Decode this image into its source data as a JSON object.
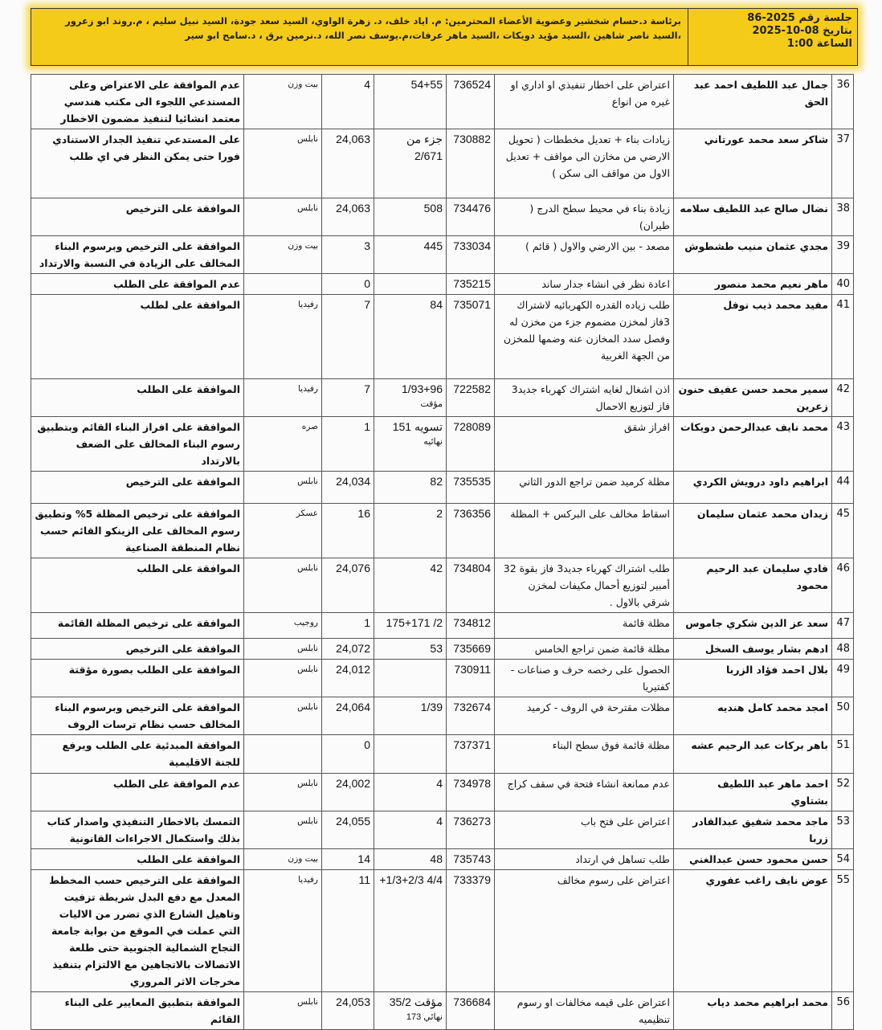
{
  "header": {
    "meeting_no": "جلسة رقم 2025-86",
    "date": "بتاريخ 08-10-2025",
    "time": "الساعة 1:00",
    "members": "برئاسة د.حسام شخشير وعضوية الأعضاء المحترمين: م. اياد خلف، د. زهرة الواوي، السيد سعد جودة، السيد نبيل سليم ، م.روند ابو زعرور ،السيد ناصر شاهين ،السيد مؤيد دويكات ،السيد ماهر عرفات،م.يوسف نصر الله، د.نرمين برق ، د.سامح ابو سير",
    "highlight_color": "#f5cb1a"
  },
  "rows": [
    {
      "num": "36",
      "name": "جمال عبد اللطيف احمد عبد الحق",
      "desc": "اعتراض على اخطار تنفيذي او اداري او غيره من انواع",
      "req": "736524",
      "parcel": "54+55",
      "parcel_note": "",
      "basin": "4",
      "area": "بيت وزن",
      "decision": "عدم الموافقة على الاعتراض وعلى المستدعي اللجوء الى مكتب هندسي معتمد انشائيا لتنفيذ مضمون الاخطار"
    },
    {
      "num": "37",
      "name": "شاكر سعد محمد عورتاني",
      "desc": "زيادات بناء + تعديل مخططات ( تحويل الارضي من مخازن الى مواقف + تعديل الاول من مواقف الى سكن )",
      "req": "730882",
      "parcel": "جزء من 2/671",
      "parcel_note": "",
      "basin": "24,063",
      "area": "نابلس",
      "decision": "على المستدعي تنفيذ الجدار الاستنادي فورا حتى يمكن النظر في اي طلب"
    },
    {
      "num": "38",
      "name": "نضال صالح عبد اللطيف سلامه",
      "desc": "زيادة بناء في محيط سطح الدرج ( طيران)",
      "req": "734476",
      "parcel": "508",
      "parcel_note": "",
      "basin": "24,063",
      "area": "نابلس",
      "decision": "الموافقة على الترخيص"
    },
    {
      "num": "39",
      "name": "مجدي عثمان منيب طشطوش",
      "desc": "مصعد - بين الارضي والاول ( قائم )",
      "req": "733034",
      "parcel": "445",
      "parcel_note": "",
      "basin": "3",
      "area": "بيت وزن",
      "decision": "الموافقة على الترخيص وبرسوم البناء المخالف على الزيادة في النسبة والارتداد"
    },
    {
      "num": "40",
      "name": "ماهر نعيم محمد منصور",
      "desc": "اعادة نظر في انشاء جدار ساند",
      "req": "735215",
      "parcel": "",
      "parcel_note": "",
      "basin": "0",
      "area": "",
      "decision": "عدم الموافقة على الطلب"
    },
    {
      "num": "41",
      "name": "مفيد محمد ذيب نوفل",
      "desc": "طلب زياده القدره الكهربائيه لاشتراك 3فاز لمخزن مضموم جزء من مخزن له وفصل سدد المخازن عنه وضمها للمخزن من الجهة الغربية",
      "req": "735071",
      "parcel": "84",
      "parcel_note": "",
      "basin": "7",
      "area": "رفيديا",
      "decision": "الموافقة على لطلب"
    },
    {
      "num": "42",
      "name": "سمير محمد حسن عفيف حنون زعرين",
      "desc": "اذن اشغال لغايه اشتراك كهرباء جديد3 فاز لتوزيع الاحمال",
      "req": "722582",
      "parcel": "1/93+96",
      "parcel_note": "مؤقت",
      "basin": "7",
      "area": "رفيديا",
      "decision": "الموافقة على الطلب"
    },
    {
      "num": "43",
      "name": "محمد نايف عبدالرحمن دويكات",
      "desc": "افراز شقق",
      "req": "728089",
      "parcel": "151 تسويه",
      "parcel_note": "نهائيه",
      "basin": "1",
      "area": "صره",
      "decision": "الموافقة على افراز البناء القائم وبتطبيق رسوم البناء المخالف على الضعف بالارتداد"
    },
    {
      "num": "44",
      "name": "ابراهيم داود درويش الكردي",
      "desc": "مظلة كرميد ضمن تراجع الدور الثاني",
      "req": "735535",
      "parcel": "82",
      "parcel_note": "",
      "basin": "24,034",
      "area": "نابلس",
      "decision": "الموافقة على الترخيص"
    },
    {
      "num": "45",
      "name": "زيدان محمد عثمان سليمان",
      "desc": "اسقاط مخالف على البركس + المظلة",
      "req": "736356",
      "parcel": "2",
      "parcel_note": "",
      "basin": "16",
      "area": "عسكر",
      "decision": "الموافقة على ترخيص المظلة 5% وتطبيق رسوم المخالف على الزينكو القائم حسب نظام المنطقة الصناعية"
    },
    {
      "num": "46",
      "name": "فادي سليمان عبد الرحيم محمود",
      "desc": "طلب اشتراك كهرباء جديد3 فاز بقوة 32 أمبير لتوزيع أحمال مكيفات لمخزن شرقي بالاول .",
      "req": "734804",
      "parcel": "42",
      "parcel_note": "",
      "basin": "24,076",
      "area": "نابلس",
      "decision": "الموافقة على الطلب"
    },
    {
      "num": "47",
      "name": "سعد عز الدين شكري جاموس",
      "desc": "مظلة قائمة",
      "req": "734812",
      "parcel": "175+171 /2",
      "parcel_note": "",
      "basin": "1",
      "area": "روجيب",
      "decision": "الموافقة على ترخيص المظلة القائمة"
    },
    {
      "num": "48",
      "name": "ادهم بشار يوسف السخل",
      "desc": "مظلة قائمة ضمن تراجع الخامس",
      "req": "735669",
      "parcel": "53",
      "parcel_note": "",
      "basin": "24,072",
      "area": "نابلس",
      "decision": "الموافقة على الترخيص"
    },
    {
      "num": "49",
      "name": "بلال احمد فؤاد الزربا",
      "desc": "الحصول على رخصه حرف و صناعات - كفتيريا",
      "req": "730911",
      "parcel": "",
      "parcel_note": "",
      "basin": "24,012",
      "area": "نابلس",
      "decision": "الموافقة على الطلب بصورة مؤقتة"
    },
    {
      "num": "50",
      "name": "امجد محمد كامل هنديه",
      "desc": "مظلات مقترحة في الروف - كرميد",
      "req": "732674",
      "parcel": "1/39",
      "parcel_note": "",
      "basin": "24,064",
      "area": "نابلس",
      "decision": "الموافقة على الترخيص وبرسوم البناء المخالف حسب نظام ترسات الروف"
    },
    {
      "num": "51",
      "name": "باهر بركات عبد الرحيم عشه",
      "desc": "مظلة قائمة فوق سطح البناء",
      "req": "737371",
      "parcel": "",
      "parcel_note": "",
      "basin": "0",
      "area": "",
      "decision": "الموافقة المبدئية على الطلب ويرفع للجنة الاقليمية"
    },
    {
      "num": "52",
      "name": "احمد ماهر عبد اللطيف بشتاوي",
      "desc": "عدم ممانعة انشاء فتحة في سقف كراج",
      "req": "734978",
      "parcel": "4",
      "parcel_note": "",
      "basin": "24,002",
      "area": "نابلس",
      "decision": "عدم الموافقة على الطلب"
    },
    {
      "num": "53",
      "name": "ماجد محمد شفيق عبدالقادر زربا",
      "desc": "اعتراض على فتح باب",
      "req": "736273",
      "parcel": "4",
      "parcel_note": "",
      "basin": "24,055",
      "area": "نابلس",
      "decision": "التمسك بالاخطار التنفيذي واصدار كتاب بذلك واستكمال الاجراءات القانونية"
    },
    {
      "num": "54",
      "name": "حسن محمود حسن عبدالغني",
      "desc": "طلب تساهل في ارتداد",
      "req": "735743",
      "parcel": "48",
      "parcel_note": "",
      "basin": "14",
      "area": "بيت وزن",
      "decision": "الموافقة على الطلب"
    },
    {
      "num": "55",
      "name": "عوض نايف راغب عفوري",
      "desc": "اعتراض على رسوم مخالف",
      "req": "733379",
      "parcel": "+1/3+2/3 4/4",
      "parcel_note": "",
      "basin": "11",
      "area": "رفيديا",
      "decision": "الموافقة على الترخيص حسب المخطط المعدل مع دفع البدل شريطة تزفيت وتاهيل الشارع الذي تضرر من الاليات التي عملت في الموقع من بوابة جامعة النجاح الشمالية الجنوبية حتى طلعة الاتصالات بالاتجاهين مع الالتزام بتنفيذ مخرجات الاثر المروري"
    },
    {
      "num": "56",
      "name": "محمد ابراهيم محمد دياب",
      "desc": "اعتراض على قيمه مخالفات او رسوم تنظيميه",
      "req": "736684",
      "parcel": "مؤقت 35/2",
      "parcel_note": "نهائي 173",
      "basin": "24,053",
      "area": "نابلس",
      "decision": "الموافقة بتطبيق المعايير على البناء القائم"
    }
  ]
}
